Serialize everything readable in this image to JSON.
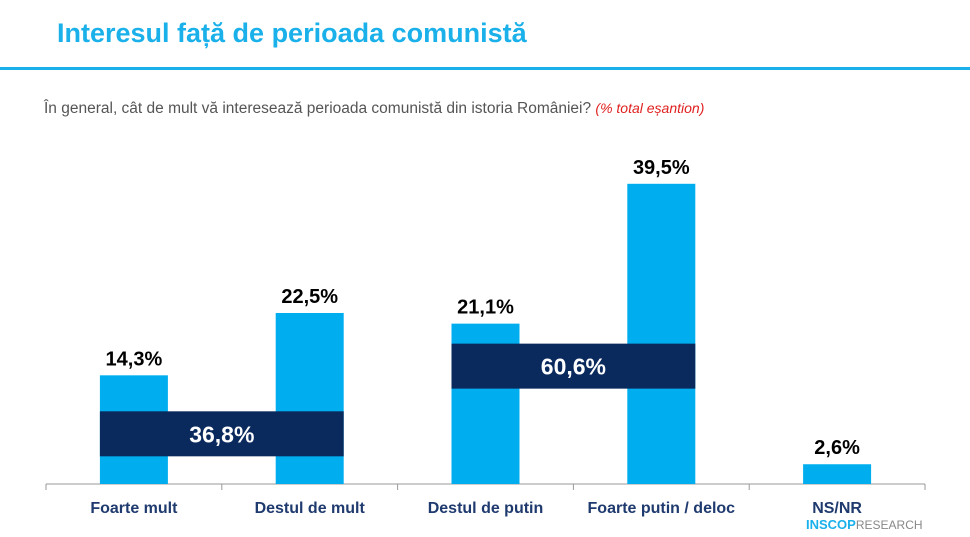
{
  "title": "Interesul față de perioada comunistă",
  "question": "În general, cât de mult vă interesează perioada comunistă din istoria României?",
  "question_note": "(% total eșantion)",
  "logo": {
    "brand": "INSCOP",
    "suffix": "RESEARCH"
  },
  "chart_data": {
    "type": "bar",
    "categories": [
      "Foarte mult",
      "Destul de mult",
      "Destul de putin",
      "Foarte putin / deloc",
      "NS/NR"
    ],
    "values": [
      14.3,
      22.5,
      21.1,
      39.5,
      2.6
    ],
    "labels": [
      "14,3%",
      "22,5%",
      "21,1%",
      "39,5%",
      "2,6%"
    ],
    "ylim": [
      0,
      40
    ],
    "bar_color": "#00aeef",
    "groups": [
      {
        "label": "36,8%",
        "value": 36.8,
        "from": 0,
        "to": 1,
        "color": "#0a2a5e"
      },
      {
        "label": "60,6%",
        "value": 60.6,
        "from": 2,
        "to": 3,
        "color": "#0a2a5e"
      }
    ],
    "grid": false
  }
}
